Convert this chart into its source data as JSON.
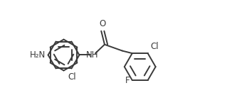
{
  "bg_color": "#ffffff",
  "line_color": "#3a3a3a",
  "text_color": "#3a3a3a",
  "line_width": 1.4,
  "font_size": 8.5,
  "figsize": [
    3.33,
    1.55
  ],
  "dpi": 100,
  "xlim": [
    -2.8,
    2.8
  ],
  "ylim": [
    -1.1,
    1.0
  ]
}
